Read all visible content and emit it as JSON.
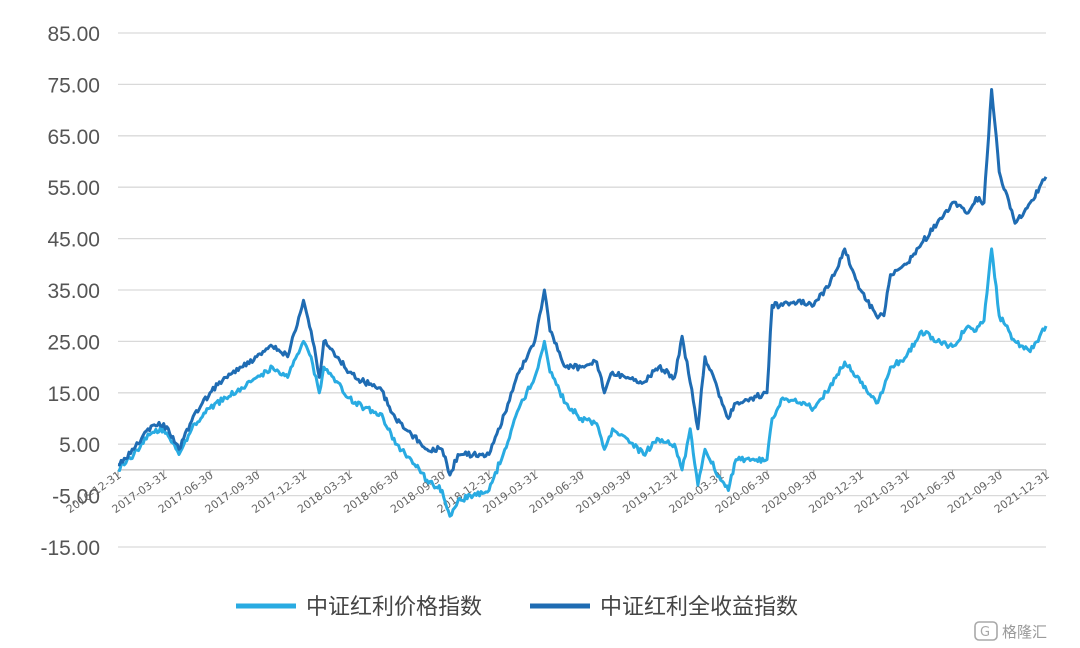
{
  "chart_data": {
    "type": "line",
    "title": "",
    "xlabel": "",
    "ylabel": "",
    "ylim": [
      -15,
      85
    ],
    "yticks": [
      "85.00",
      "75.00",
      "65.00",
      "55.00",
      "45.00",
      "35.00",
      "25.00",
      "15.00",
      "5.00",
      "-5.00",
      "-15.00"
    ],
    "ytick_values": [
      85,
      75,
      65,
      55,
      45,
      35,
      25,
      15,
      5,
      -5,
      -15
    ],
    "xticks": [
      "2016-12-31",
      "2017-03-31",
      "2017-06-30",
      "2017-09-30",
      "2017-12-31",
      "2018-03-31",
      "2018-06-30",
      "2018-09-30",
      "2018-12-31",
      "2019-03-31",
      "2019-06-30",
      "2019-09-30",
      "2019-12-31",
      "2020-03-31",
      "2020-06-30",
      "2020-09-30",
      "2020-12-31",
      "2021-03-31",
      "2021-06-30",
      "2021-09-30",
      "2021-12-31"
    ],
    "grid": "horizontal",
    "legend_position": "bottom",
    "series": [
      {
        "name": "中证红利价格指数",
        "color": "#29abe2",
        "x": [
          "2016-12-31",
          "2017-01-31",
          "2017-02-28",
          "2017-03-31",
          "2017-04-30",
          "2017-05-31",
          "2017-06-30",
          "2017-07-31",
          "2017-08-31",
          "2017-09-30",
          "2017-10-31",
          "2017-11-30",
          "2017-12-31",
          "2018-01-15",
          "2018-01-31",
          "2018-02-09",
          "2018-02-28",
          "2018-03-31",
          "2018-04-30",
          "2018-05-31",
          "2018-06-30",
          "2018-07-31",
          "2018-08-31",
          "2018-09-30",
          "2018-10-15",
          "2018-10-31",
          "2018-11-30",
          "2018-12-31",
          "2019-01-31",
          "2019-02-28",
          "2019-03-31",
          "2019-04-19",
          "2019-04-30",
          "2019-05-31",
          "2019-06-30",
          "2019-07-31",
          "2019-08-15",
          "2019-08-31",
          "2019-09-30",
          "2019-10-31",
          "2019-11-30",
          "2019-12-31",
          "2020-01-15",
          "2020-01-31",
          "2020-02-15",
          "2020-02-29",
          "2020-03-31",
          "2020-04-15",
          "2020-04-30",
          "2020-05-31",
          "2020-06-30",
          "2020-07-10",
          "2020-07-31",
          "2020-08-31",
          "2020-09-30",
          "2020-10-31",
          "2020-11-30",
          "2020-12-31",
          "2021-01-31",
          "2021-02-15",
          "2021-02-28",
          "2021-03-31",
          "2021-04-30",
          "2021-05-31",
          "2021-06-30",
          "2021-07-31",
          "2021-08-15",
          "2021-08-31",
          "2021-09-15",
          "2021-09-30",
          "2021-10-31",
          "2021-11-30",
          "2021-12-31"
        ],
        "y": [
          0,
          3,
          7,
          8,
          3,
          9,
          12,
          14,
          16,
          18,
          20,
          18,
          25,
          22,
          15,
          20,
          18,
          14,
          12,
          11,
          5,
          2,
          -2,
          -4,
          -9,
          -6,
          -5,
          -4,
          4,
          12,
          18,
          25,
          19,
          13,
          10,
          9,
          4,
          8,
          6,
          3,
          6,
          5,
          0,
          8,
          -3,
          4,
          -2,
          -4,
          2,
          2,
          2,
          10,
          14,
          13,
          12,
          16,
          21,
          17,
          13,
          16,
          20,
          22,
          27,
          25,
          24,
          28,
          27,
          29,
          43,
          30,
          25,
          23,
          28
        ]
      },
      {
        "name": "中证红利全收益指数",
        "color": "#1f6cb3",
        "x": [
          "2016-12-31",
          "2017-01-31",
          "2017-02-28",
          "2017-03-31",
          "2017-04-30",
          "2017-05-31",
          "2017-06-30",
          "2017-07-31",
          "2017-08-31",
          "2017-09-30",
          "2017-10-31",
          "2017-11-30",
          "2017-12-31",
          "2018-01-15",
          "2018-01-31",
          "2018-02-09",
          "2018-02-28",
          "2018-03-31",
          "2018-04-30",
          "2018-05-31",
          "2018-06-30",
          "2018-07-31",
          "2018-08-31",
          "2018-09-30",
          "2018-10-15",
          "2018-10-31",
          "2018-11-30",
          "2018-12-31",
          "2019-01-31",
          "2019-02-28",
          "2019-03-31",
          "2019-04-19",
          "2019-04-30",
          "2019-05-31",
          "2019-06-30",
          "2019-07-31",
          "2019-08-15",
          "2019-08-31",
          "2019-09-30",
          "2019-10-31",
          "2019-11-30",
          "2019-12-31",
          "2020-01-15",
          "2020-01-31",
          "2020-02-15",
          "2020-02-29",
          "2020-03-31",
          "2020-04-15",
          "2020-04-30",
          "2020-05-31",
          "2020-06-30",
          "2020-07-10",
          "2020-07-31",
          "2020-08-31",
          "2020-09-30",
          "2020-10-31",
          "2020-11-30",
          "2020-12-31",
          "2021-01-31",
          "2021-02-15",
          "2021-02-28",
          "2021-03-31",
          "2021-04-30",
          "2021-05-31",
          "2021-06-30",
          "2021-07-31",
          "2021-08-15",
          "2021-08-31",
          "2021-09-15",
          "2021-09-30",
          "2021-10-31",
          "2021-11-30",
          "2021-12-31"
        ],
        "y": [
          1,
          4,
          8,
          9,
          4,
          11,
          15,
          18,
          20,
          22,
          24,
          22,
          33,
          27,
          18,
          25,
          23,
          19,
          17,
          16,
          10,
          7,
          4,
          4,
          -1,
          3,
          3,
          3,
          11,
          19,
          25,
          35,
          27,
          20,
          20,
          21,
          15,
          19,
          18,
          17,
          20,
          18,
          26,
          17,
          8,
          22,
          14,
          10,
          13,
          14,
          15,
          32,
          32,
          33,
          32,
          36,
          43,
          35,
          30,
          30,
          38,
          40,
          44,
          48,
          52,
          50,
          53,
          52,
          74,
          58,
          48,
          52,
          57
        ]
      }
    ]
  },
  "legend": {
    "items": [
      {
        "label": "中证红利价格指数",
        "color": "#29abe2"
      },
      {
        "label": "中证红利全收益指数",
        "color": "#1f6cb3"
      }
    ]
  },
  "watermark": {
    "text": "格隆汇",
    "icon": "g-logo-icon"
  }
}
